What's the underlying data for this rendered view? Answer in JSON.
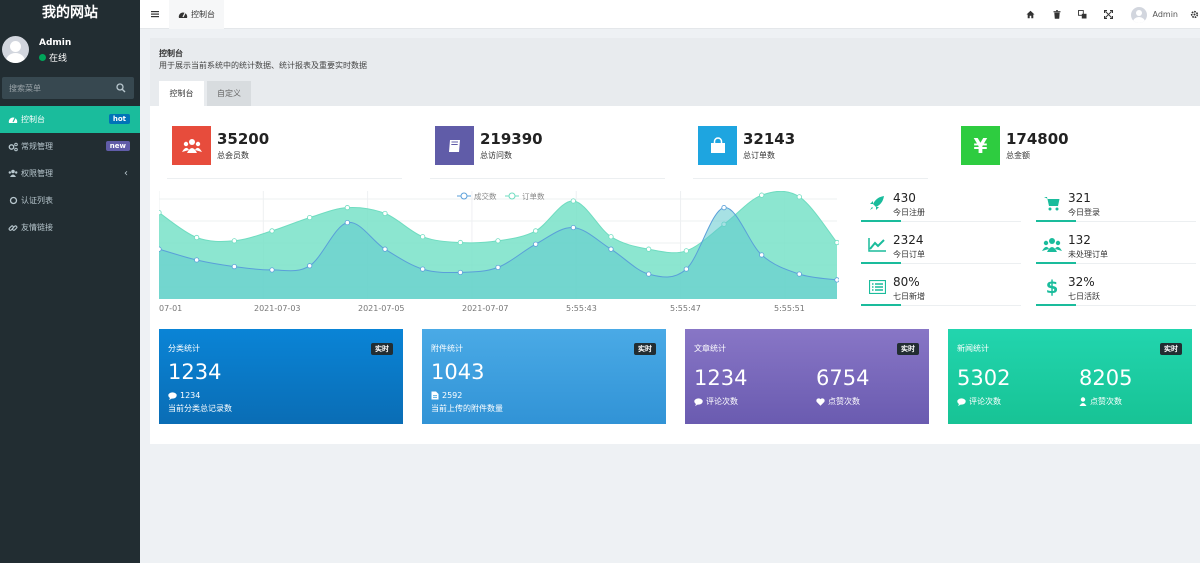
{
  "sidebar": {
    "logo": "我的网站",
    "user": {
      "name": "Admin",
      "status": "在线"
    },
    "search_placeholder": "搜索菜单",
    "items": [
      {
        "label": "控制台",
        "icon": "dashboard-icon",
        "badge": "hot",
        "active": true
      },
      {
        "label": "常规管理",
        "icon": "cogs-icon",
        "badge": "new"
      },
      {
        "label": "权限管理",
        "icon": "group-icon",
        "chevron": "‹"
      },
      {
        "label": "认证列表",
        "icon": "circle-icon"
      },
      {
        "label": "友情链接",
        "icon": "link-icon"
      }
    ]
  },
  "header": {
    "tab_label": "控制台",
    "user_name": "Admin",
    "icons": [
      "home-icon",
      "trash-icon",
      "translate-icon",
      "fullscreen-icon",
      "settings-icon"
    ]
  },
  "page": {
    "title": "控制台",
    "description": "用于展示当前系统中的统计数据、统计报表及重要实时数据",
    "tabs": [
      "控制台",
      "自定义"
    ]
  },
  "stats": [
    {
      "value": "35200",
      "label": "总会员数",
      "color": "#e74c3c",
      "icon": "users-icon"
    },
    {
      "value": "219390",
      "label": "总访问数",
      "color": "#605ca8",
      "icon": "book-icon"
    },
    {
      "value": "32143",
      "label": "总订单数",
      "color": "#1ea5e0",
      "icon": "shopping-bag-icon"
    },
    {
      "value": "174800",
      "label": "总金额",
      "color": "#2ecc40",
      "icon": "yen-icon"
    }
  ],
  "mini_stats": [
    {
      "value": "430",
      "label": "今日注册",
      "icon": "rocket-icon"
    },
    {
      "value": "321",
      "label": "今日登录",
      "icon": "cart-icon"
    },
    {
      "value": "2324",
      "label": "今日订单",
      "icon": "area-chart-icon"
    },
    {
      "value": "132",
      "label": "未处理订单",
      "icon": "users-icon"
    },
    {
      "value": "80%",
      "label": "七日新增",
      "icon": "list-alt-icon"
    },
    {
      "value": "32%",
      "label": "七日活跃",
      "icon": "dollar-icon"
    }
  ],
  "cards": [
    {
      "title": "分类统计",
      "tag": "实时",
      "value": "1234",
      "sub_value": "1234",
      "sub_label": "当前分类总记录数",
      "color": "#0a78c7",
      "icon": "comment-icon"
    },
    {
      "title": "附件统计",
      "tag": "实时",
      "value": "1043",
      "sub_value": "2592",
      "sub_label": "当前上传的附件数量",
      "color": "#3fa3e0",
      "icon": "file-icon"
    },
    {
      "title": "文章统计",
      "tag": "实时",
      "value_left": "1234",
      "label_left": "评论次数",
      "value_right": "6754",
      "label_right": "点赞次数",
      "color": "#7a6ab8"
    },
    {
      "title": "新闻统计",
      "tag": "实时",
      "value_left": "5302",
      "label_left": "评论次数",
      "value_right": "8205",
      "label_right": "点赞次数",
      "color": "#1fcf9f"
    }
  ],
  "chart_data": {
    "type": "area",
    "series": [
      {
        "name": "成交数",
        "color": "#4a90d9",
        "values": [
          60,
          47,
          39,
          35,
          40,
          92,
          60,
          36,
          32,
          38,
          66,
          86,
          60,
          30,
          36,
          110,
          53,
          30,
          23
        ]
      },
      {
        "name": "订单数",
        "color": "#7ee3c8",
        "values": [
          104,
          74,
          70,
          82,
          98,
          110,
          103,
          75,
          68,
          70,
          82,
          118,
          75,
          60,
          58,
          90,
          125,
          123,
          68
        ]
      }
    ],
    "tick_labels": [
      "07-01",
      "2021-07-03",
      "2021-07-05",
      "2021-07-07",
      "5:55:43",
      "5:55:47",
      "5:55:51"
    ],
    "legend_position": "top",
    "grid": true
  }
}
